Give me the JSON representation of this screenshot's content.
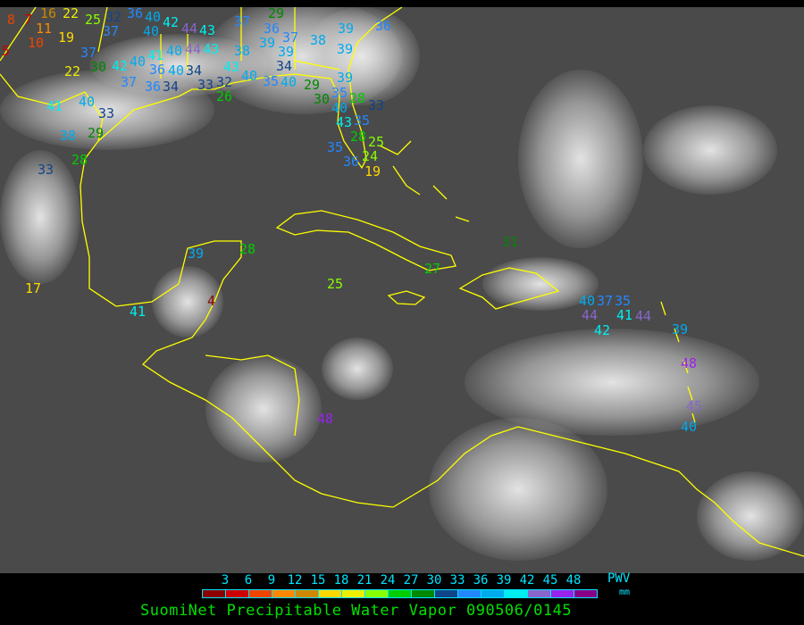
{
  "title": "SuomiNet Precipitable Water Vapor 090506/0145",
  "legend": {
    "unit": "PWV",
    "unit_sub": "mm",
    "ticks": [
      "3",
      "6",
      "9",
      "12",
      "15",
      "18",
      "21",
      "24",
      "27",
      "30",
      "33",
      "36",
      "39",
      "42",
      "45",
      "48"
    ],
    "colors": [
      "#8b0000",
      "#cc0000",
      "#ee4400",
      "#ff8800",
      "#cc8800",
      "#ffd700",
      "#eeee00",
      "#88ff00",
      "#00cc00",
      "#008800",
      "#114488",
      "#2288ff",
      "#00aaee",
      "#00eeee",
      "#8866cc",
      "#9922ee",
      "#880088"
    ]
  },
  "colors": {
    "background": "#4a4a4a",
    "coastline": "#ffff00",
    "title": "#00e000"
  },
  "stations": [
    "8",
    "7",
    "16",
    "22",
    "25",
    "32",
    "36",
    "40",
    "42",
    "37",
    "40",
    "44",
    "43",
    "11",
    "10",
    "19",
    "5",
    "37",
    "30",
    "22",
    "42",
    "40",
    "41",
    "36",
    "37",
    "36",
    "34",
    "40",
    "44",
    "43",
    "40",
    "34",
    "33",
    "32",
    "26",
    "43",
    "38",
    "37",
    "36",
    "39",
    "37",
    "39",
    "34",
    "40",
    "35",
    "40",
    "38",
    "39",
    "39",
    "36",
    "29",
    "30",
    "35",
    "39",
    "28",
    "40",
    "43",
    "35",
    "33",
    "35",
    "36",
    "28",
    "25",
    "24",
    "19",
    "41",
    "40",
    "33",
    "38",
    "29",
    "28",
    "33",
    "17",
    "39",
    "28",
    "41",
    "4",
    "25",
    "27",
    "31",
    "40",
    "37",
    "35",
    "41",
    "44",
    "42",
    "44",
    "39",
    "48",
    "45",
    "40",
    "48",
    "29"
  ]
}
